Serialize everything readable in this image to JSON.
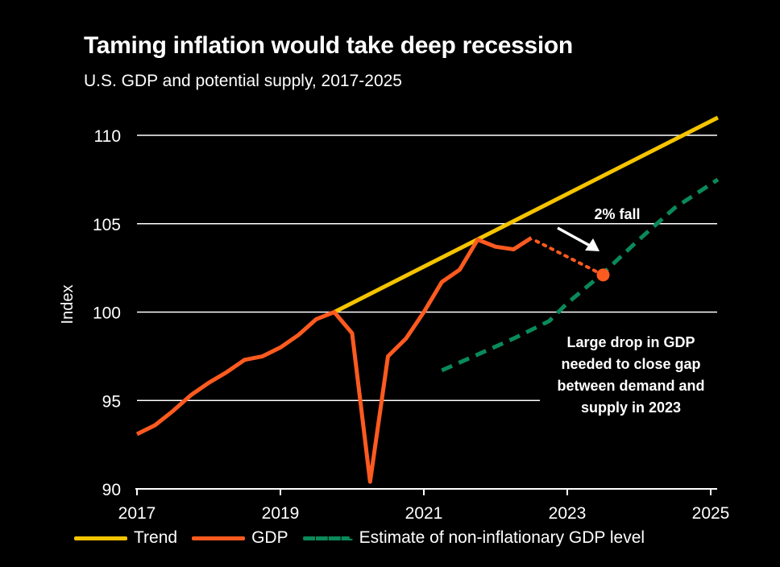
{
  "chart_data": {
    "type": "line",
    "title": "Taming inflation would take deep recession",
    "subtitle": "U.S. GDP and potential supply, 2017-2025",
    "ylabel": "Index",
    "xlim": [
      2017,
      2025
    ],
    "ylim": [
      90,
      111
    ],
    "x_ticks": [
      "2017",
      "2019",
      "2021",
      "2023",
      "2025"
    ],
    "y_ticks": [
      "90",
      "95",
      "100",
      "105",
      "110"
    ],
    "series": [
      {
        "name": "Trend",
        "color": "#f5c400",
        "style": "solid",
        "points": [
          [
            2019.75,
            100.0
          ],
          [
            2025.1,
            111.0
          ]
        ]
      },
      {
        "name": "GDP",
        "color": "#ff5a1f",
        "style": "solid",
        "points": [
          [
            2017.0,
            93.1
          ],
          [
            2017.25,
            93.6
          ],
          [
            2017.5,
            94.4
          ],
          [
            2017.75,
            95.3
          ],
          [
            2018.0,
            96.0
          ],
          [
            2018.25,
            96.6
          ],
          [
            2018.5,
            97.3
          ],
          [
            2018.75,
            97.5
          ],
          [
            2019.0,
            98.0
          ],
          [
            2019.25,
            98.7
          ],
          [
            2019.5,
            99.6
          ],
          [
            2019.75,
            100.0
          ],
          [
            2020.0,
            98.8
          ],
          [
            2020.25,
            90.4
          ],
          [
            2020.5,
            97.5
          ],
          [
            2020.75,
            98.5
          ],
          [
            2021.0,
            100.0
          ],
          [
            2021.25,
            101.7
          ],
          [
            2021.5,
            102.4
          ],
          [
            2021.75,
            104.1
          ],
          [
            2022.0,
            103.7
          ],
          [
            2022.25,
            103.55
          ],
          [
            2022.5,
            104.2
          ]
        ]
      },
      {
        "name": "Estimate of non-inflationary GDP level",
        "color": "#0a8a5a",
        "style": "dashed",
        "points": [
          [
            2021.25,
            96.7
          ],
          [
            2021.75,
            97.6
          ],
          [
            2022.25,
            98.5
          ],
          [
            2022.75,
            99.5
          ],
          [
            2023.0,
            100.5
          ],
          [
            2023.5,
            102.2
          ],
          [
            2024.0,
            104.1
          ],
          [
            2024.5,
            105.9
          ],
          [
            2025.1,
            107.5
          ]
        ]
      }
    ],
    "projection": {
      "from": [
        2022.5,
        104.2
      ],
      "to": [
        2023.5,
        102.1
      ],
      "color": "#ff5a1f",
      "style": "dotted"
    },
    "annotations": {
      "fall": "2% fall",
      "drop": [
        "Large drop in GDP",
        "needed to close gap",
        "between demand and",
        "supply in 2023"
      ]
    },
    "legend": [
      {
        "label": "Trend",
        "color": "#f5c400",
        "style": "solid"
      },
      {
        "label": "GDP",
        "color": "#ff5a1f",
        "style": "solid"
      },
      {
        "label": "Estimate of non-inflationary GDP level",
        "color": "#0a8a5a",
        "style": "dashed"
      }
    ],
    "grid": true,
    "legend_position": "bottom"
  }
}
